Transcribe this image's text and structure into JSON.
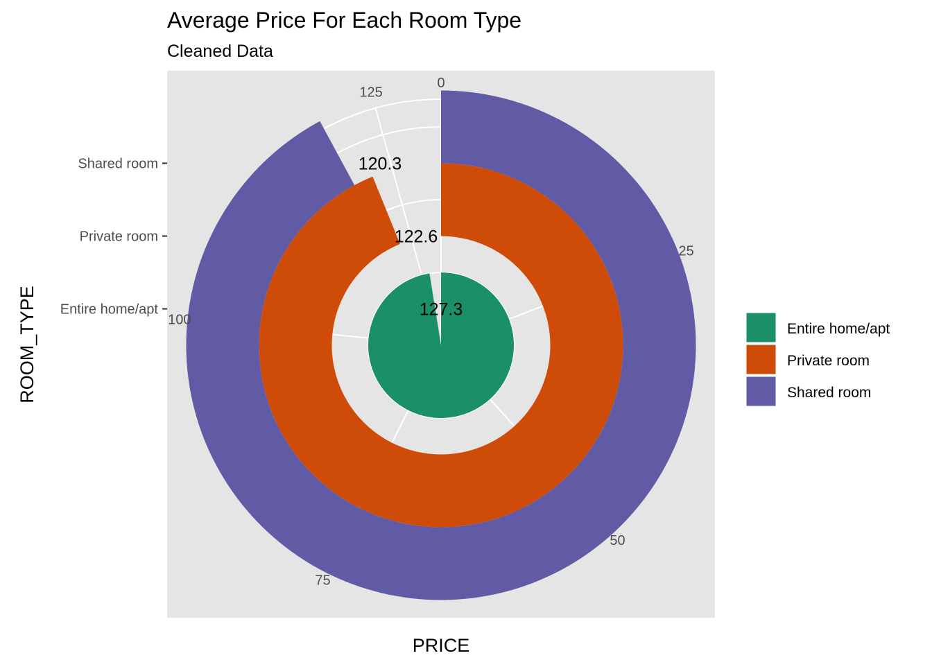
{
  "chart_data": {
    "type": "polar-bar",
    "title": "Average Price For Each Room Type",
    "subtitle": "Cleaned Data",
    "xlabel": "PRICE",
    "ylabel": "ROOM_TYPE",
    "theta_range": [
      0,
      130.6
    ],
    "theta_ticks": [
      "0",
      "25",
      "50",
      "75",
      "100",
      "125"
    ],
    "theta_tick_values": [
      0,
      25,
      50,
      75,
      100,
      125
    ],
    "radial_ticks": [
      "Entire home/apt",
      "Private room",
      "Shared room"
    ],
    "categories": [
      "Entire home/apt",
      "Private room",
      "Shared room"
    ],
    "values": [
      127.3,
      122.6,
      120.3
    ],
    "value_labels": [
      "127.3",
      "122.6",
      "120.3"
    ],
    "colors": [
      "#1B9066",
      "#CF4C08",
      "#615AA5"
    ],
    "legend": {
      "position": "right",
      "entries": [
        "Entire home/apt",
        "Private room",
        "Shared room"
      ]
    },
    "panel_background": "#E5E5E5",
    "grid": true
  }
}
